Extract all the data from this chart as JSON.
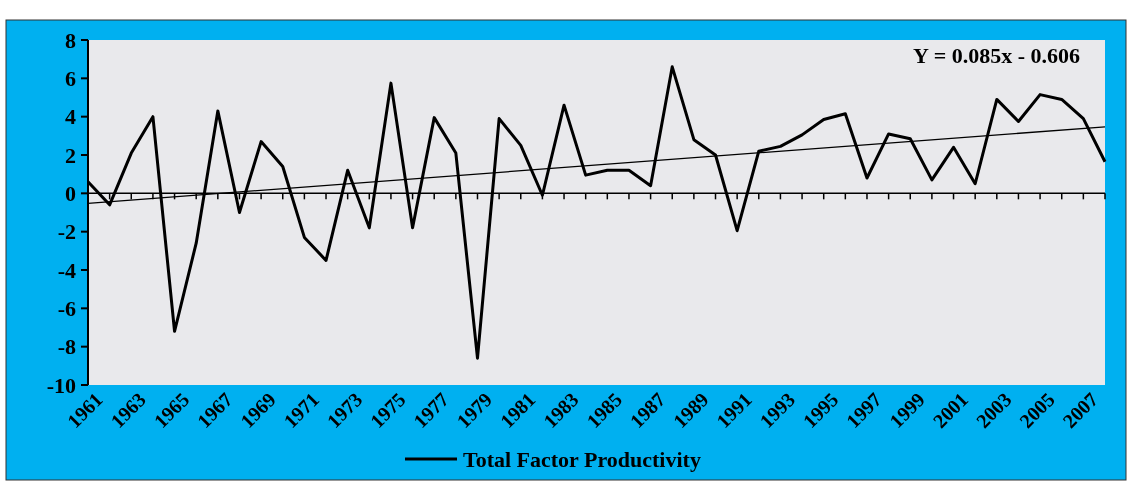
{
  "chart_data": {
    "type": "line",
    "x": [
      1961,
      1962,
      1963,
      1964,
      1965,
      1966,
      1967,
      1968,
      1969,
      1970,
      1971,
      1972,
      1973,
      1974,
      1975,
      1976,
      1977,
      1978,
      1979,
      1980,
      1981,
      1982,
      1983,
      1984,
      1985,
      1986,
      1987,
      1988,
      1989,
      1990,
      1991,
      1992,
      1993,
      1994,
      1995,
      1996,
      1997,
      1998,
      1999,
      2000,
      2001,
      2002,
      2003,
      2004,
      2005,
      2006,
      2007,
      2008
    ],
    "series": [
      {
        "name": "Total Factor Productivity",
        "color": "#000000",
        "values": [
          0.6,
          -0.6,
          2.1,
          4.0,
          -7.2,
          -2.6,
          4.3,
          -1.0,
          2.7,
          1.4,
          -2.3,
          -3.5,
          1.2,
          -1.8,
          5.75,
          -1.8,
          3.95,
          2.1,
          -8.6,
          3.9,
          2.5,
          -0.1,
          4.6,
          0.95,
          1.2,
          1.2,
          0.4,
          6.6,
          2.8,
          2.0,
          -1.95,
          2.2,
          2.45,
          3.05,
          3.85,
          4.15,
          0.8,
          3.1,
          2.85,
          0.7,
          2.4,
          0.5,
          4.9,
          3.75,
          5.15,
          4.9,
          3.9,
          1.65
        ]
      },
      {
        "type": "line",
        "color": "#000000",
        "x": [
          1961,
          2008
        ],
        "values": [
          -0.52,
          3.47
        ]
      }
    ],
    "xlim": [
      1961,
      2008
    ],
    "xticks": [
      1961,
      {
        "value": 1962,
        "label": null
      },
      1963,
      {
        "value": 1964,
        "label": null
      },
      1965,
      {
        "value": 1966,
        "label": null
      },
      1967,
      {
        "value": 1968,
        "label": null
      },
      1969,
      {
        "value": 1970,
        "label": null
      },
      1971,
      {
        "value": 1972,
        "label": null
      },
      1973,
      {
        "value": 1974,
        "label": null
      },
      1975,
      {
        "value": 1976,
        "label": null
      },
      1977,
      {
        "value": 1978,
        "label": null
      },
      1979,
      {
        "value": 1980,
        "label": null
      },
      1981,
      {
        "value": 1982,
        "label": null
      },
      1983,
      {
        "value": 1984,
        "label": null
      },
      1985,
      {
        "value": 1986,
        "label": null
      },
      1987,
      {
        "value": 1988,
        "label": null
      },
      1989,
      {
        "value": 1990,
        "label": null
      },
      1991,
      {
        "value": 1992,
        "label": null
      },
      1993,
      {
        "value": 1994,
        "label": null
      },
      1995,
      {
        "value": 1996,
        "label": null
      },
      1997,
      {
        "value": 1998,
        "label": null
      },
      1999,
      {
        "value": 2000,
        "label": null
      },
      2001,
      {
        "value": 2002,
        "label": null
      },
      2003,
      {
        "value": 2004,
        "label": null
      },
      2005,
      {
        "value": 2006,
        "label": null
      },
      2007,
      {
        "value": 2008,
        "label": null
      }
    ],
    "ylim": [
      -10,
      8
    ],
    "yticks": [
      -10,
      -8,
      -6,
      -4,
      -2,
      0,
      2,
      4,
      6,
      8
    ],
    "annotations": [
      "Y = 0.085x - 0.606"
    ],
    "legend": "bottom",
    "marker": "none",
    "line_style": "solid"
  }
}
